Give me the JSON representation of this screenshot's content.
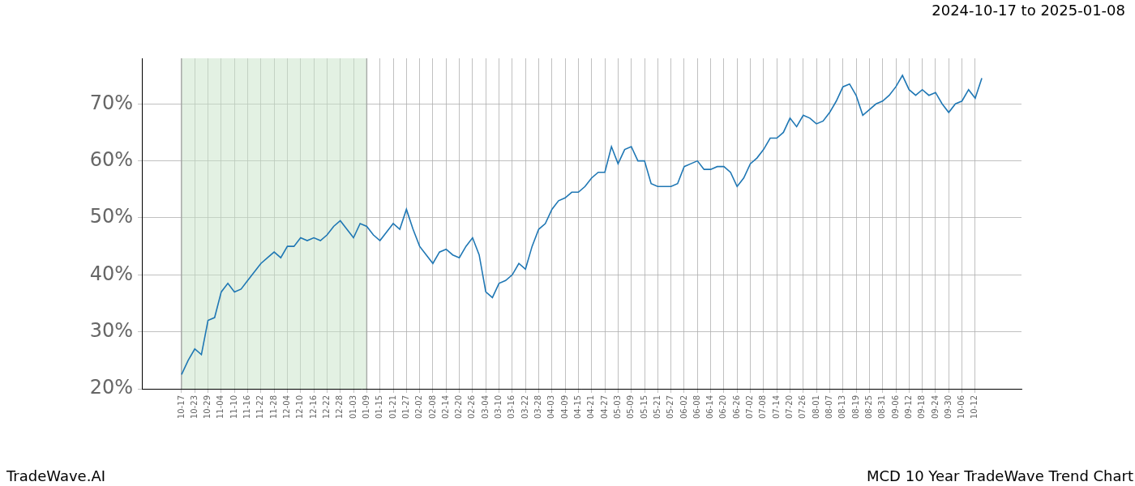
{
  "chart_data": {
    "type": "line",
    "title": "2024-10-17 to 2025-01-08",
    "source": "TradeWave.AI",
    "subtitle": "MCD 10 Year TradeWave Trend Chart",
    "categories": [
      "10-17",
      null,
      "10-23",
      null,
      "10-29",
      null,
      "11-04",
      null,
      "11-10",
      null,
      "11-16",
      null,
      "11-22",
      null,
      "11-28",
      null,
      "12-04",
      null,
      "12-10",
      null,
      "12-16",
      null,
      "12-22",
      null,
      "12-28",
      null,
      "01-03",
      null,
      "01-09",
      null,
      "01-15",
      null,
      "01-21",
      null,
      "01-27",
      null,
      "02-02",
      null,
      "02-08",
      null,
      "02-14",
      null,
      "02-20",
      null,
      "02-26",
      null,
      "03-04",
      null,
      "03-10",
      null,
      "03-16",
      null,
      "03-22",
      null,
      "03-28",
      null,
      "04-03",
      null,
      "04-09",
      null,
      "04-15",
      null,
      "04-21",
      null,
      "04-27",
      null,
      "05-03",
      null,
      "05-09",
      null,
      "05-15",
      null,
      "05-21",
      null,
      "05-27",
      null,
      "06-02",
      null,
      "06-08",
      null,
      "06-14",
      null,
      "06-20",
      null,
      "06-26",
      null,
      "07-02",
      null,
      "07-08",
      null,
      "07-14",
      null,
      "07-20",
      null,
      "07-26",
      null,
      "08-01",
      null,
      "08-07",
      null,
      "08-13",
      null,
      "08-19",
      null,
      "08-25",
      null,
      "08-31",
      null,
      "09-06",
      null,
      "09-12",
      null,
      "09-18",
      null,
      "09-24",
      null,
      "09-30",
      null,
      "10-06",
      null,
      "10-12",
      null
    ],
    "values": [
      22.5,
      25,
      27,
      26,
      32,
      32.5,
      37,
      38.5,
      37,
      37.5,
      39,
      40.5,
      42,
      43,
      44,
      43,
      45,
      45,
      46.5,
      46,
      46.5,
      46,
      47,
      48.5,
      49.5,
      48,
      46.5,
      49,
      48.5,
      47,
      46,
      47.5,
      49,
      48,
      51.5,
      48,
      45,
      43.5,
      42,
      44,
      44.5,
      43.5,
      43,
      45,
      46.5,
      43.5,
      37,
      36,
      38.5,
      39,
      40,
      42,
      41,
      45,
      48,
      49,
      51.5,
      53,
      53.5,
      54.5,
      54.5,
      55.5,
      57,
      58,
      58,
      62.5,
      59.5,
      62,
      62.5,
      60,
      60,
      56,
      55.5,
      55.5,
      55.5,
      56,
      59,
      59.5,
      60,
      58.5,
      58.5,
      59,
      59,
      58,
      55.5,
      57,
      59.5,
      60.5,
      62,
      64,
      64,
      65,
      67.5,
      66,
      68,
      67.5,
      66.5,
      67,
      68.5,
      70.5,
      73,
      73.5,
      71.5,
      68,
      69,
      70,
      70.5,
      71.5,
      73,
      75,
      72.5,
      71.5,
      72.5,
      71.5,
      72,
      70,
      68.5,
      70,
      70.5,
      72.5,
      71,
      74.5
    ],
    "color": "#1f77b4",
    "shaded_range": [
      "10-17",
      "01-09"
    ],
    "ylim": [
      20,
      78
    ],
    "yticks": [
      {
        "value": 20,
        "label": "20%"
      },
      {
        "value": 30,
        "label": "30%"
      },
      {
        "value": 40,
        "label": "40%"
      },
      {
        "value": 50,
        "label": "50%"
      },
      {
        "value": 60,
        "label": "60%"
      },
      {
        "value": 70,
        "label": "70%"
      }
    ],
    "grid": true
  }
}
